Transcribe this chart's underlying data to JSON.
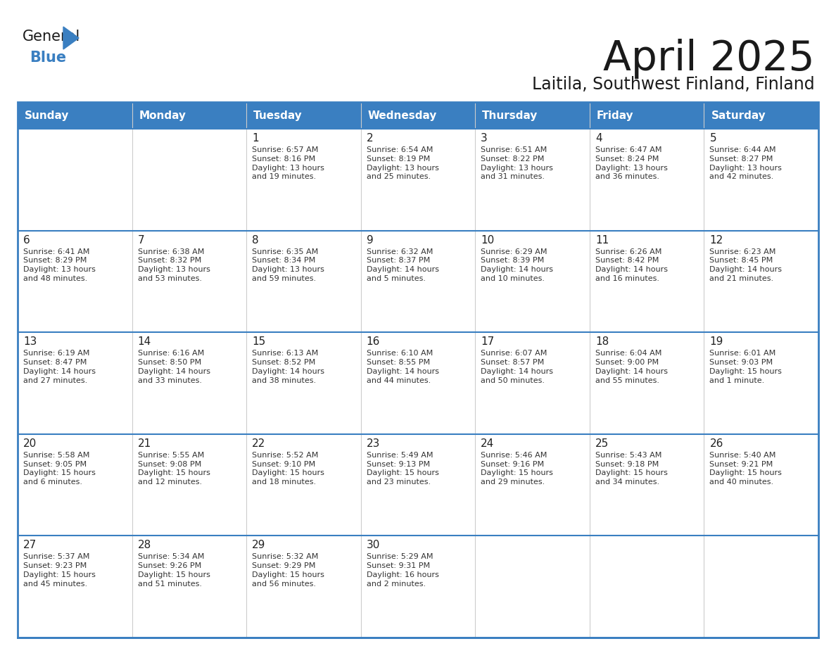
{
  "title": "April 2025",
  "subtitle": "Laitila, Southwest Finland, Finland",
  "header_bg": "#3a7fc1",
  "header_text_color": "#ffffff",
  "cell_bg": "#ffffff",
  "day_text_color": "#222222",
  "info_text_color": "#333333",
  "border_color": "#3a7fc1",
  "separator_color": "#cccccc",
  "days_of_week": [
    "Sunday",
    "Monday",
    "Tuesday",
    "Wednesday",
    "Thursday",
    "Friday",
    "Saturday"
  ],
  "weeks": [
    [
      {
        "day": "",
        "info": ""
      },
      {
        "day": "",
        "info": ""
      },
      {
        "day": "1",
        "info": "Sunrise: 6:57 AM\nSunset: 8:16 PM\nDaylight: 13 hours\nand 19 minutes."
      },
      {
        "day": "2",
        "info": "Sunrise: 6:54 AM\nSunset: 8:19 PM\nDaylight: 13 hours\nand 25 minutes."
      },
      {
        "day": "3",
        "info": "Sunrise: 6:51 AM\nSunset: 8:22 PM\nDaylight: 13 hours\nand 31 minutes."
      },
      {
        "day": "4",
        "info": "Sunrise: 6:47 AM\nSunset: 8:24 PM\nDaylight: 13 hours\nand 36 minutes."
      },
      {
        "day": "5",
        "info": "Sunrise: 6:44 AM\nSunset: 8:27 PM\nDaylight: 13 hours\nand 42 minutes."
      }
    ],
    [
      {
        "day": "6",
        "info": "Sunrise: 6:41 AM\nSunset: 8:29 PM\nDaylight: 13 hours\nand 48 minutes."
      },
      {
        "day": "7",
        "info": "Sunrise: 6:38 AM\nSunset: 8:32 PM\nDaylight: 13 hours\nand 53 minutes."
      },
      {
        "day": "8",
        "info": "Sunrise: 6:35 AM\nSunset: 8:34 PM\nDaylight: 13 hours\nand 59 minutes."
      },
      {
        "day": "9",
        "info": "Sunrise: 6:32 AM\nSunset: 8:37 PM\nDaylight: 14 hours\nand 5 minutes."
      },
      {
        "day": "10",
        "info": "Sunrise: 6:29 AM\nSunset: 8:39 PM\nDaylight: 14 hours\nand 10 minutes."
      },
      {
        "day": "11",
        "info": "Sunrise: 6:26 AM\nSunset: 8:42 PM\nDaylight: 14 hours\nand 16 minutes."
      },
      {
        "day": "12",
        "info": "Sunrise: 6:23 AM\nSunset: 8:45 PM\nDaylight: 14 hours\nand 21 minutes."
      }
    ],
    [
      {
        "day": "13",
        "info": "Sunrise: 6:19 AM\nSunset: 8:47 PM\nDaylight: 14 hours\nand 27 minutes."
      },
      {
        "day": "14",
        "info": "Sunrise: 6:16 AM\nSunset: 8:50 PM\nDaylight: 14 hours\nand 33 minutes."
      },
      {
        "day": "15",
        "info": "Sunrise: 6:13 AM\nSunset: 8:52 PM\nDaylight: 14 hours\nand 38 minutes."
      },
      {
        "day": "16",
        "info": "Sunrise: 6:10 AM\nSunset: 8:55 PM\nDaylight: 14 hours\nand 44 minutes."
      },
      {
        "day": "17",
        "info": "Sunrise: 6:07 AM\nSunset: 8:57 PM\nDaylight: 14 hours\nand 50 minutes."
      },
      {
        "day": "18",
        "info": "Sunrise: 6:04 AM\nSunset: 9:00 PM\nDaylight: 14 hours\nand 55 minutes."
      },
      {
        "day": "19",
        "info": "Sunrise: 6:01 AM\nSunset: 9:03 PM\nDaylight: 15 hours\nand 1 minute."
      }
    ],
    [
      {
        "day": "20",
        "info": "Sunrise: 5:58 AM\nSunset: 9:05 PM\nDaylight: 15 hours\nand 6 minutes."
      },
      {
        "day": "21",
        "info": "Sunrise: 5:55 AM\nSunset: 9:08 PM\nDaylight: 15 hours\nand 12 minutes."
      },
      {
        "day": "22",
        "info": "Sunrise: 5:52 AM\nSunset: 9:10 PM\nDaylight: 15 hours\nand 18 minutes."
      },
      {
        "day": "23",
        "info": "Sunrise: 5:49 AM\nSunset: 9:13 PM\nDaylight: 15 hours\nand 23 minutes."
      },
      {
        "day": "24",
        "info": "Sunrise: 5:46 AM\nSunset: 9:16 PM\nDaylight: 15 hours\nand 29 minutes."
      },
      {
        "day": "25",
        "info": "Sunrise: 5:43 AM\nSunset: 9:18 PM\nDaylight: 15 hours\nand 34 minutes."
      },
      {
        "day": "26",
        "info": "Sunrise: 5:40 AM\nSunset: 9:21 PM\nDaylight: 15 hours\nand 40 minutes."
      }
    ],
    [
      {
        "day": "27",
        "info": "Sunrise: 5:37 AM\nSunset: 9:23 PM\nDaylight: 15 hours\nand 45 minutes."
      },
      {
        "day": "28",
        "info": "Sunrise: 5:34 AM\nSunset: 9:26 PM\nDaylight: 15 hours\nand 51 minutes."
      },
      {
        "day": "29",
        "info": "Sunrise: 5:32 AM\nSunset: 9:29 PM\nDaylight: 15 hours\nand 56 minutes."
      },
      {
        "day": "30",
        "info": "Sunrise: 5:29 AM\nSunset: 9:31 PM\nDaylight: 16 hours\nand 2 minutes."
      },
      {
        "day": "",
        "info": ""
      },
      {
        "day": "",
        "info": ""
      },
      {
        "day": "",
        "info": ""
      }
    ]
  ],
  "logo_general_color": "#1a1a1a",
  "logo_blue_color": "#3a7fc1",
  "title_color": "#1a1a1a",
  "subtitle_color": "#1a1a1a"
}
